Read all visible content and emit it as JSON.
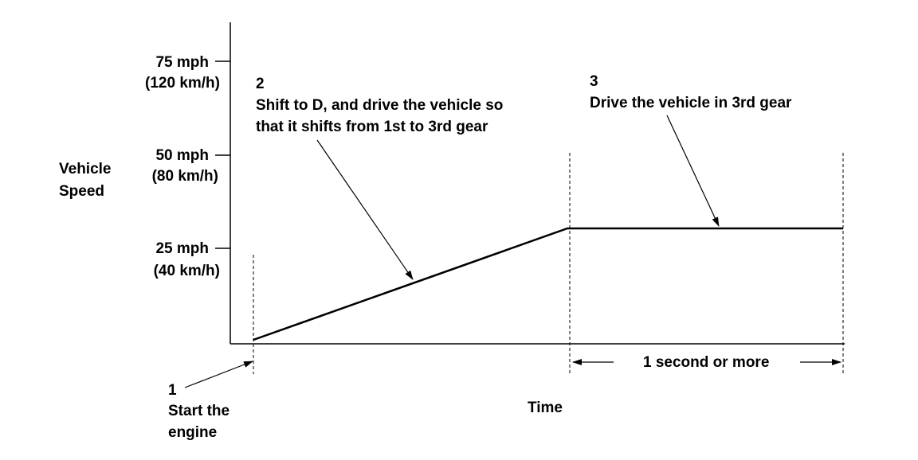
{
  "y_axis": {
    "label_lines": [
      "Vehicle",
      "Speed"
    ],
    "ticks": [
      {
        "mph": "75 mph",
        "kmh": "(120 km/h)"
      },
      {
        "mph": "50 mph",
        "kmh": "(80 km/h)"
      },
      {
        "mph": "25 mph",
        "kmh": "(40 km/h)"
      }
    ]
  },
  "x_axis": {
    "label": "Time"
  },
  "steps": [
    {
      "number": "1",
      "lines": [
        "Start the",
        "engine"
      ]
    },
    {
      "number": "2",
      "lines": [
        "Shift to D, and drive the vehicle so",
        "that it shifts from 1st to 3rd gear"
      ]
    },
    {
      "number": "3",
      "lines": [
        "Drive the vehicle in 3rd gear"
      ]
    }
  ],
  "duration": {
    "label": "1 second or more"
  },
  "colors": {
    "line": "#000000",
    "background": "#ffffff"
  }
}
